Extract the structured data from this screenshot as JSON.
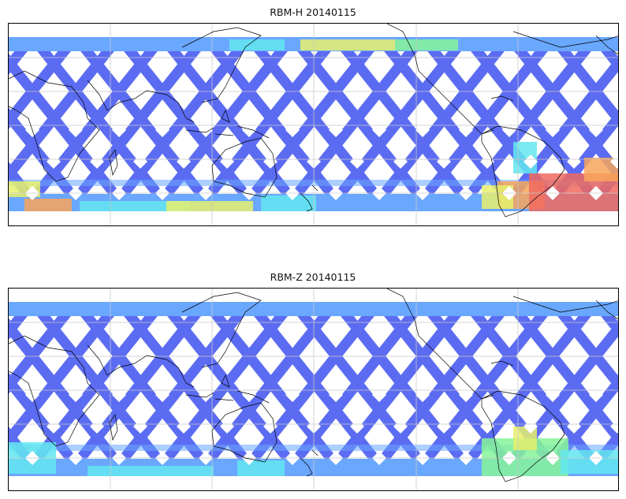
{
  "panels": [
    {
      "title": "RBM-H 20140115"
    },
    {
      "title": "RBM-Z 20140115"
    }
  ],
  "colors": {
    "base_swath": "#5b6cf2",
    "light_blue": "#6aa7ff",
    "cyan": "#63e6f0",
    "green": "#86f59a",
    "yellow": "#e6f06c",
    "orange": "#f7a45a",
    "red": "#f06a5f",
    "coast": "#000000",
    "grid": "#c8c8c8"
  },
  "map": {
    "projection": "equirectangular",
    "center_longitude": 180,
    "swath_coverage_latitudes": [
      -60,
      60
    ],
    "gridlines": true
  }
}
